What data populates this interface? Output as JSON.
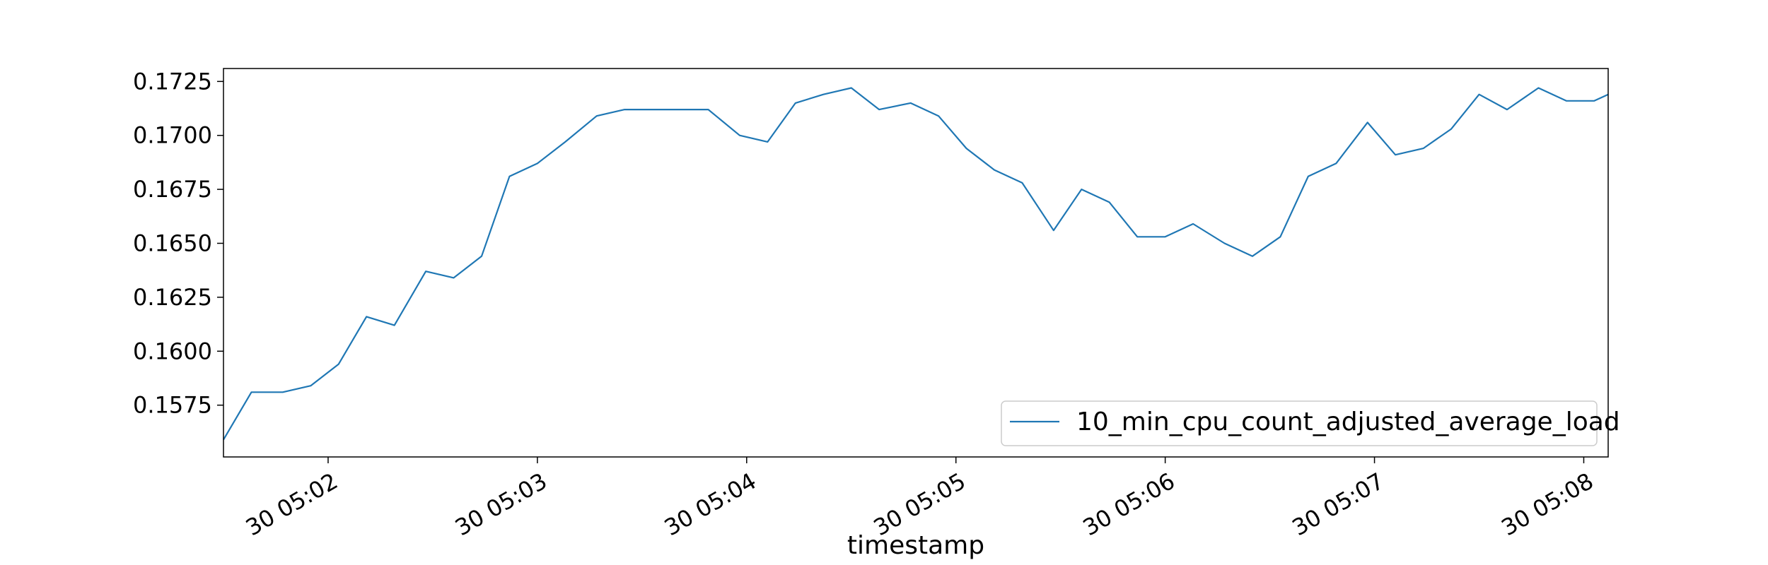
{
  "chart_data": {
    "type": "line",
    "xlabel": "timestamp",
    "ylabel": "",
    "title": "",
    "x_ticks": [
      "30 05:02",
      "30 05:03",
      "30 05:04",
      "30 05:05",
      "30 05:06",
      "30 05:07",
      "30 05:08"
    ],
    "y_ticks": [
      "0.1575",
      "0.1600",
      "0.1625",
      "0.1650",
      "0.1675",
      "0.1700",
      "0.1725"
    ],
    "ylim": [
      0.1551,
      0.1731
    ],
    "xlim": [
      "30 05:01:30",
      "30 05:08:07"
    ],
    "legend_position": "lower-right",
    "grid": false,
    "line_color": "#1f77b4",
    "x": [
      "30 05:01:30",
      "30 05:01:38",
      "30 05:01:47",
      "30 05:01:55",
      "30 05:02:03",
      "30 05:02:11",
      "30 05:02:19",
      "30 05:02:28",
      "30 05:02:36",
      "30 05:02:44",
      "30 05:02:52",
      "30 05:03:00",
      "30 05:03:08",
      "30 05:03:17",
      "30 05:03:25",
      "30 05:03:33",
      "30 05:03:41",
      "30 05:03:49",
      "30 05:03:58",
      "30 05:04:06",
      "30 05:04:14",
      "30 05:04:22",
      "30 05:04:30",
      "30 05:04:38",
      "30 05:04:47",
      "30 05:04:55",
      "30 05:05:03",
      "30 05:05:11",
      "30 05:05:19",
      "30 05:05:28",
      "30 05:05:36",
      "30 05:05:44",
      "30 05:05:52",
      "30 05:06:00",
      "30 05:06:08",
      "30 05:06:17",
      "30 05:06:25",
      "30 05:06:33",
      "30 05:06:41",
      "30 05:06:49",
      "30 05:06:58",
      "30 05:07:06",
      "30 05:07:14",
      "30 05:07:22",
      "30 05:07:30",
      "30 05:07:38",
      "30 05:07:47",
      "30 05:07:55",
      "30 05:08:03",
      "30 05:08:07"
    ],
    "series": [
      {
        "name": "10_min_cpu_count_adjusted_average_load",
        "values": [
          0.1559,
          0.1581,
          0.1581,
          0.1584,
          0.1594,
          0.1616,
          0.1612,
          0.1637,
          0.1634,
          0.1644,
          0.1681,
          0.1687,
          0.1697,
          0.1709,
          0.1712,
          0.1712,
          0.1712,
          0.1712,
          0.17,
          0.1697,
          0.1715,
          0.1719,
          0.1722,
          0.1712,
          0.1715,
          0.1709,
          0.1694,
          0.1684,
          0.1678,
          0.1656,
          0.1675,
          0.1669,
          0.1653,
          0.1653,
          0.1659,
          0.165,
          0.1644,
          0.1653,
          0.1681,
          0.1687,
          0.1706,
          0.1691,
          0.1694,
          0.1703,
          0.1719,
          0.1712,
          0.1722,
          0.1716,
          0.1716,
          0.1719
        ]
      }
    ]
  }
}
